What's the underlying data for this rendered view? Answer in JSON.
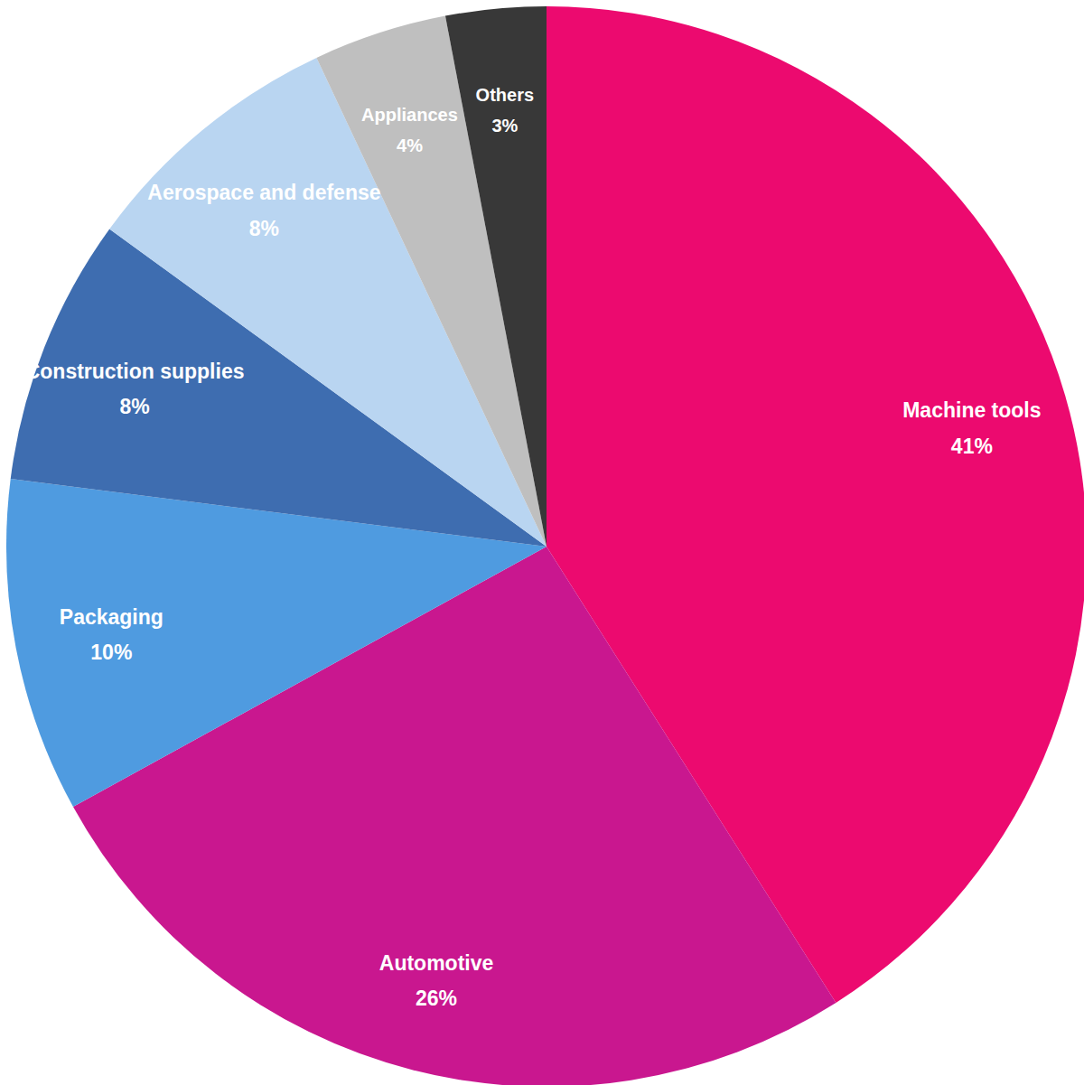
{
  "chart_data": {
    "type": "pie",
    "categories": [
      "Machine tools",
      "Automotive",
      "Packaging",
      "Construction supplies",
      "Aerospace and defense",
      "Appliances",
      "Others"
    ],
    "values": [
      41,
      26,
      10,
      8,
      8,
      4,
      3
    ],
    "value_labels": [
      "41%",
      "26%",
      "10%",
      "8%",
      "8%",
      "4%",
      "3%"
    ],
    "colors": [
      "#ec0a6f",
      "#c9178f",
      "#4f9be0",
      "#3e6db0",
      "#b9d5f1",
      "#bfbfbf",
      "#383838"
    ],
    "data_labels": true
  }
}
